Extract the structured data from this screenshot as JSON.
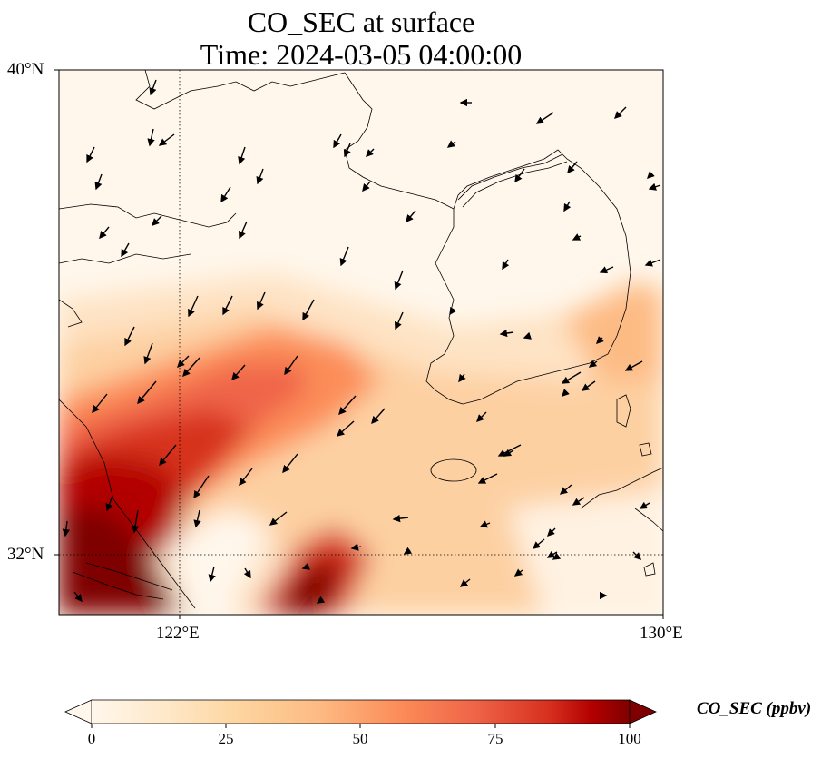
{
  "title_line1": "CO_SEC at surface",
  "title_line2": "Time: 2024-03-05 04:00:00",
  "axes": {
    "lat_ticks": [
      "40°N",
      "32°N"
    ],
    "lon_ticks": [
      "122°E",
      "130°E"
    ],
    "lon_range": [
      120,
      130
    ],
    "lat_range": [
      31,
      40
    ]
  },
  "colorbar": {
    "label": "CO_SEC (ppbv)",
    "ticks": [
      "0",
      "25",
      "50",
      "75",
      "100"
    ],
    "min": 0,
    "max": 100,
    "colormap": "OrRd",
    "extend": "both"
  },
  "colors": {
    "low": "#fff7ec",
    "mid": "#fdbb84",
    "high": "#7f0000"
  }
}
